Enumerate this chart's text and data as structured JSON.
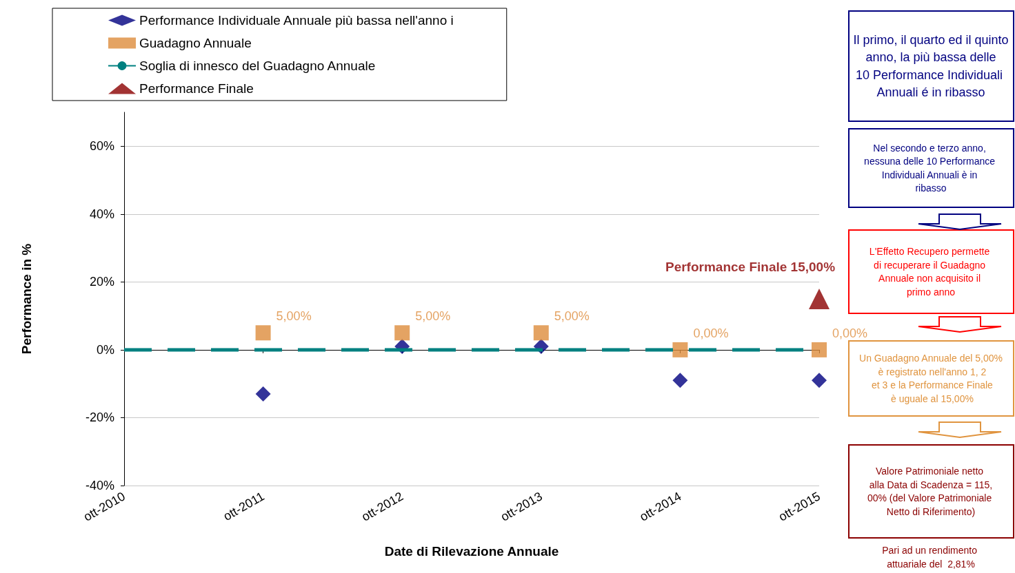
{
  "chart_data": {
    "type": "scatter",
    "categories": [
      "ott-2010",
      "ott-2011",
      "ott-2012",
      "ott-2013",
      "ott-2014",
      "ott-2015"
    ],
    "series": [
      {
        "name": "Performance Individuale Annuale più bassa nell'anno i",
        "marker": "diamond",
        "color": "#000080",
        "values": [
          null,
          -13,
          1,
          1,
          -9,
          -9
        ]
      },
      {
        "name": "Guadagno Annuale",
        "marker": "square",
        "color": "#dd8c3c",
        "values": [
          null,
          5,
          5,
          5,
          0,
          0
        ],
        "value_labels": [
          null,
          "5,00%",
          "5,00%",
          "5,00%",
          "0,00%",
          "0,00%"
        ]
      },
      {
        "name": "Soglia di innesco del Guadagno Annuale",
        "type": "line",
        "marker": "none",
        "line_style": "dashed",
        "color": "#008080",
        "values": [
          0,
          0,
          0,
          0,
          0,
          0
        ]
      },
      {
        "name": "Performance Finale",
        "marker": "triangle",
        "color": "#8b0000",
        "values": [
          null,
          null,
          null,
          null,
          null,
          15
        ],
        "value_labels": [
          null,
          null,
          null,
          null,
          null,
          "Performance Finale 15,00%"
        ]
      }
    ],
    "xlabel": "Date di Rilevazione Annuale",
    "ylabel": "Performance in %",
    "ylim": [
      -40,
      70
    ],
    "yticks": [
      {
        "value": -40,
        "label": "-40%"
      },
      {
        "value": -20,
        "label": "-20%"
      },
      {
        "value": 0,
        "label": "0%"
      },
      {
        "value": 20,
        "label": "20%"
      },
      {
        "value": 40,
        "label": "40%"
      },
      {
        "value": 60,
        "label": "60%"
      }
    ],
    "grid": "y",
    "legend": "top left",
    "annotations": [
      "Il primo, il quarto ed il quinto anno, la più bassa delle 10 Performance Individuali Annuali é in ribasso",
      "Nel secondo e terzo anno, nessuna delle 10 Performance Individuali Annuali è in ribasso",
      "L'Effetto Recupero permette di recuperare il Guadagno Annuale non acquisito il primo anno",
      "Un Guadagno Annuale del 5,00% è registrato nell'anno 1, 2 et 3 e la Performance Finale è uguale al 15,00%",
      "Valore Patrimoniale netto alla Data di Scadenza = 115,00% (del Valore Patrimoniale Netto di Riferimento)",
      "Pari ad un rendimento attuariale del  2,81%"
    ]
  }
}
